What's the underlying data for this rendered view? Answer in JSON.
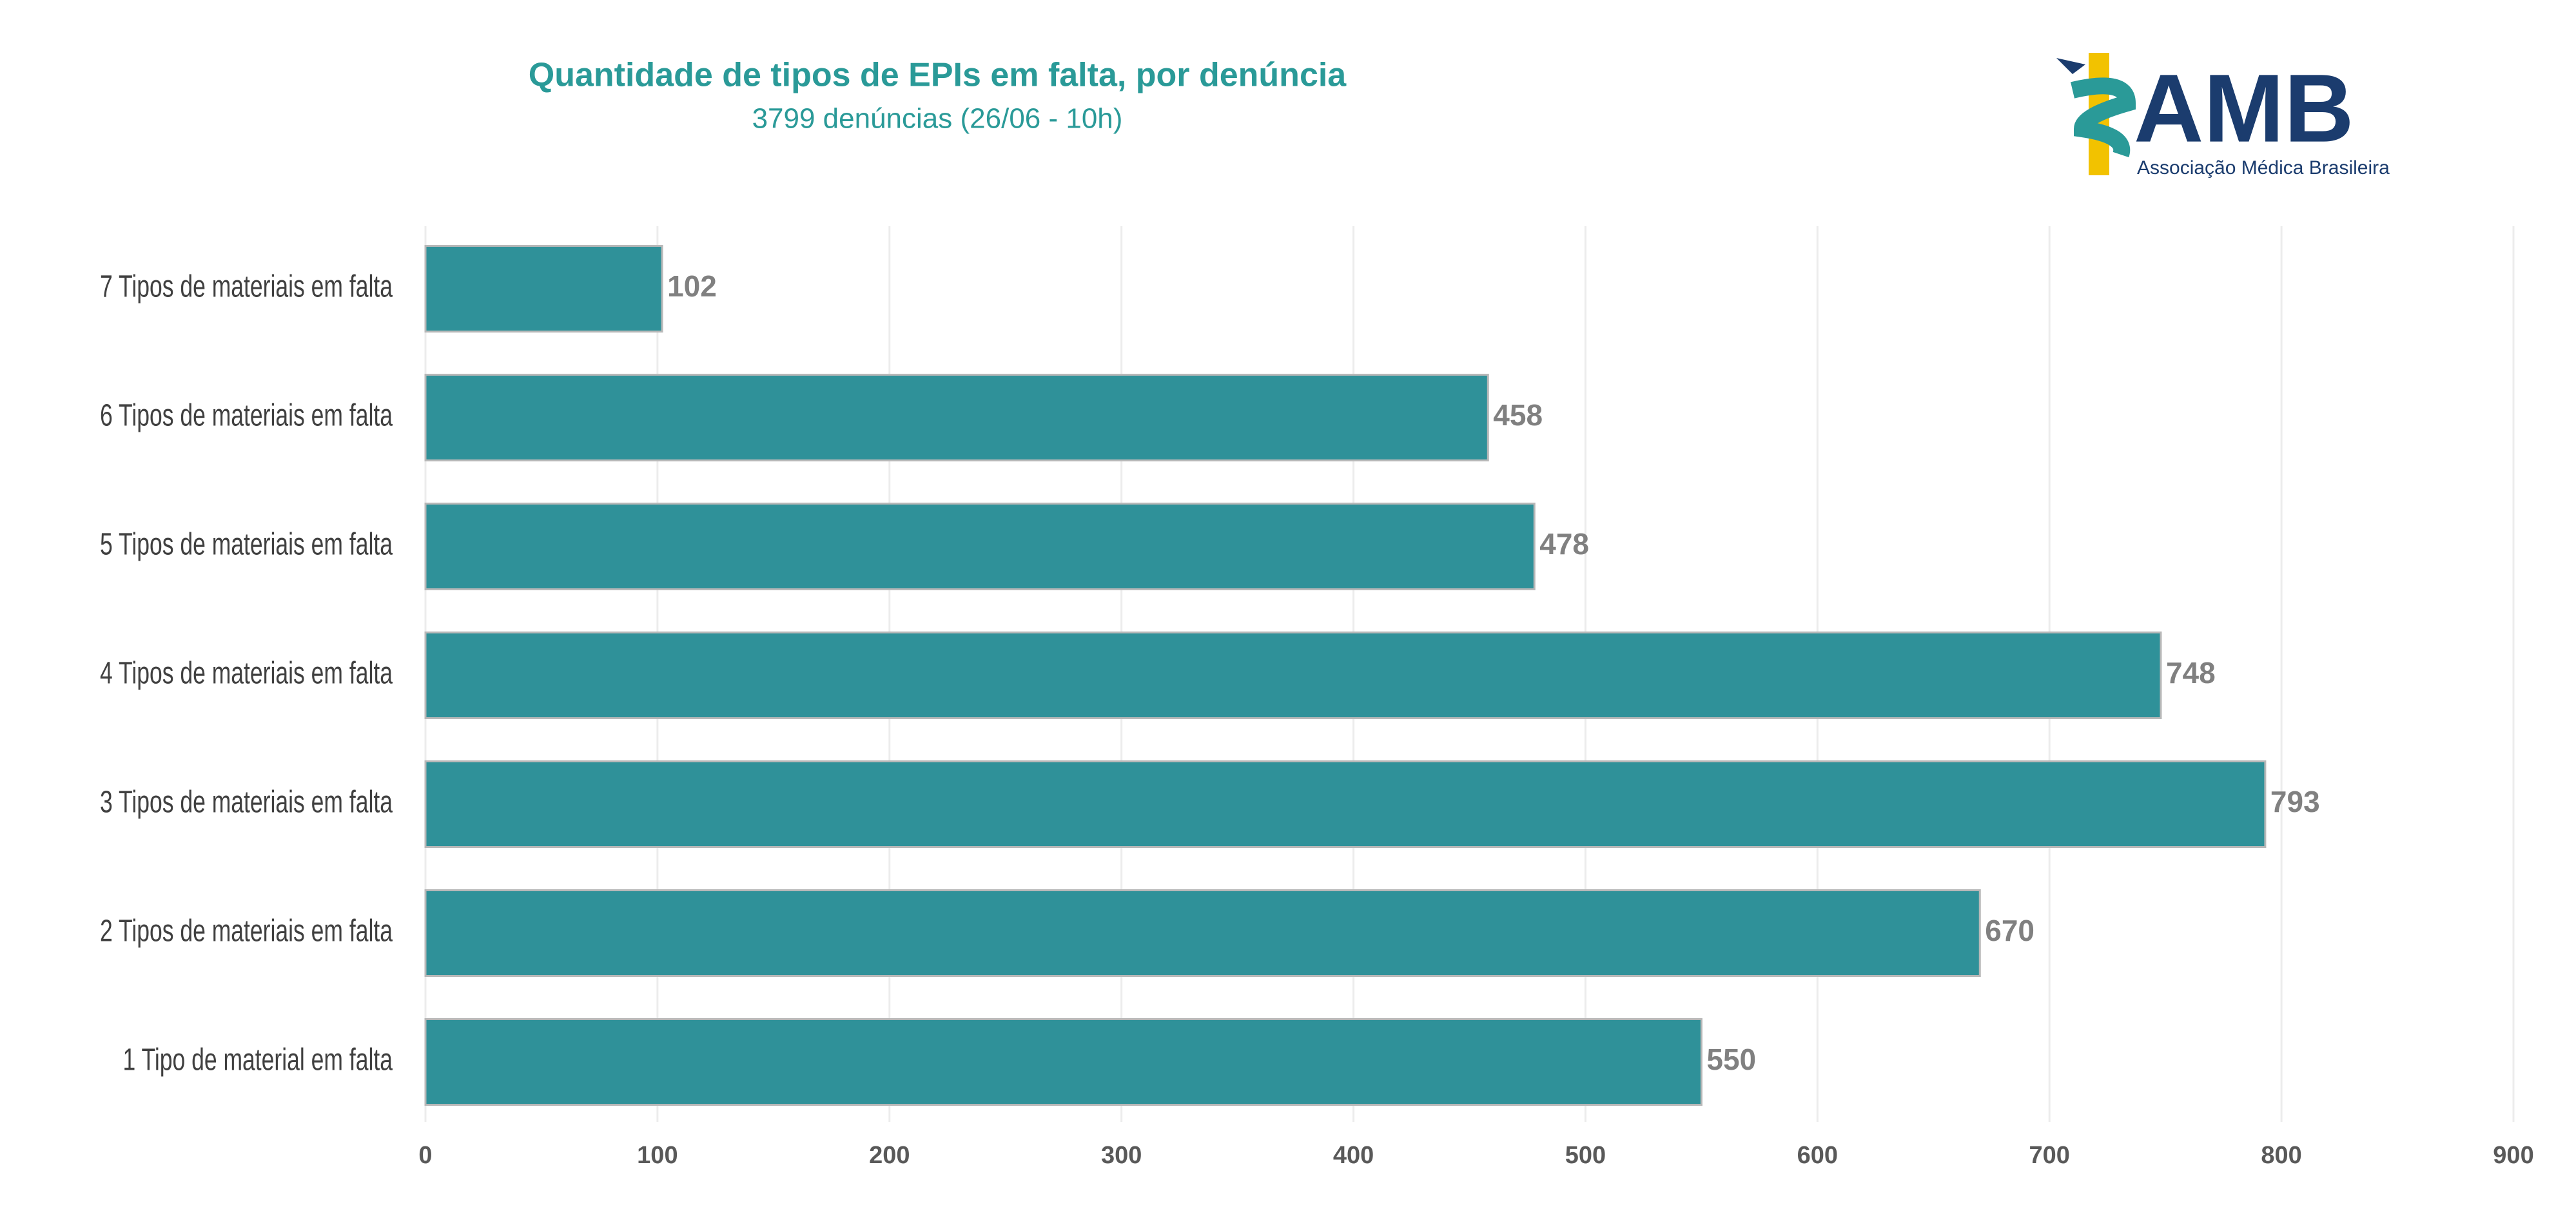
{
  "chart_data": {
    "type": "barh",
    "title": "Quantidade de tipos de EPIs em falta, por denúncia",
    "subtitle": "3799 denúncias (26/06 - 10h)",
    "categories": [
      "7 Tipos de materiais em falta",
      "6 Tipos de materiais em falta",
      "5 Tipos de materiais em falta",
      "4 Tipos de materiais em falta",
      "3 Tipos de materiais em falta",
      "2 Tipos de materiais em falta",
      "1 Tipo de material em falta"
    ],
    "values": [
      102,
      458,
      478,
      748,
      793,
      670,
      550
    ],
    "color": "#2f9199",
    "xlim": [
      0,
      900
    ],
    "xticks": [
      0,
      100,
      200,
      300,
      400,
      500,
      600,
      700,
      800,
      900
    ],
    "grid": true
  },
  "logo": {
    "name": "AMB",
    "subtitle": "Associação Médica Brasileira"
  }
}
